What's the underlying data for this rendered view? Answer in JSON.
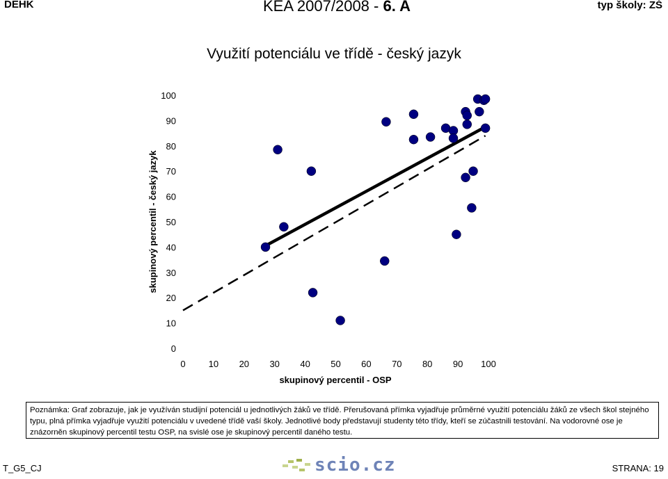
{
  "header": {
    "left": "DEHK",
    "center_main": "KEA 2007/2008 -",
    "center_class": "6. A",
    "right": "typ školy: ZŠ"
  },
  "chart_data": {
    "type": "scatter",
    "title": "Využití potenciálu ve třídě - český jazyk",
    "xlabel": "skupinový percentil - OSP",
    "ylabel": "skupinový percentil - český jazyk",
    "xlim": [
      0,
      100
    ],
    "ylim": [
      0,
      100
    ],
    "xticks": [
      0,
      10,
      20,
      30,
      40,
      50,
      60,
      70,
      80,
      90,
      100
    ],
    "yticks": [
      0,
      10,
      20,
      30,
      40,
      50,
      60,
      70,
      80,
      90,
      100
    ],
    "grid": false,
    "legend": "none",
    "marker_color": "#000080",
    "points": [
      {
        "x": 27,
        "y": 40
      },
      {
        "x": 31,
        "y": 78.5
      },
      {
        "x": 33,
        "y": 48
      },
      {
        "x": 42,
        "y": 70
      },
      {
        "x": 42.5,
        "y": 22
      },
      {
        "x": 51.5,
        "y": 11
      },
      {
        "x": 66,
        "y": 34.5
      },
      {
        "x": 66.5,
        "y": 89.5
      },
      {
        "x": 75.5,
        "y": 92.5
      },
      {
        "x": 75.5,
        "y": 82.5
      },
      {
        "x": 81,
        "y": 83.5
      },
      {
        "x": 86,
        "y": 87
      },
      {
        "x": 88.5,
        "y": 86
      },
      {
        "x": 88.5,
        "y": 83
      },
      {
        "x": 89.5,
        "y": 45
      },
      {
        "x": 92.5,
        "y": 93.5
      },
      {
        "x": 92.5,
        "y": 67.5
      },
      {
        "x": 93,
        "y": 92
      },
      {
        "x": 93,
        "y": 88.5
      },
      {
        "x": 94.5,
        "y": 55.5
      },
      {
        "x": 95,
        "y": 70
      },
      {
        "x": 96.5,
        "y": 98.5
      },
      {
        "x": 97,
        "y": 93.5
      },
      {
        "x": 98.5,
        "y": 98
      },
      {
        "x": 99,
        "y": 98.5
      },
      {
        "x": 99,
        "y": 87
      }
    ],
    "class_line": {
      "x": [
        27,
        99
      ],
      "y": [
        40.5,
        87.5
      ],
      "style": "solid"
    },
    "average_line": {
      "x": [
        0,
        99
      ],
      "y": [
        15,
        84
      ],
      "style": "dashed"
    }
  },
  "note": "Poznámka: Graf zobrazuje, jak je využíván studijní potenciál u jednotlivých žáků ve třídě. Přerušovaná přímka vyjadřuje průměrné využití potenciálu žáků ze všech škol stejného typu, plná přímka vyjadřuje využití potenciálu v uvedené třídě vaší školy. Jednotlivé body představují studenty této třídy, kteří se zúčastnili testování. Na vodorovné ose je znázorněn skupinový percentil testu OSP, na svislé ose je skupinový percentil daného testu.",
  "footer": {
    "left": "T_G5_CJ",
    "logo": "scio.cz",
    "right": "STRANA: 19"
  }
}
